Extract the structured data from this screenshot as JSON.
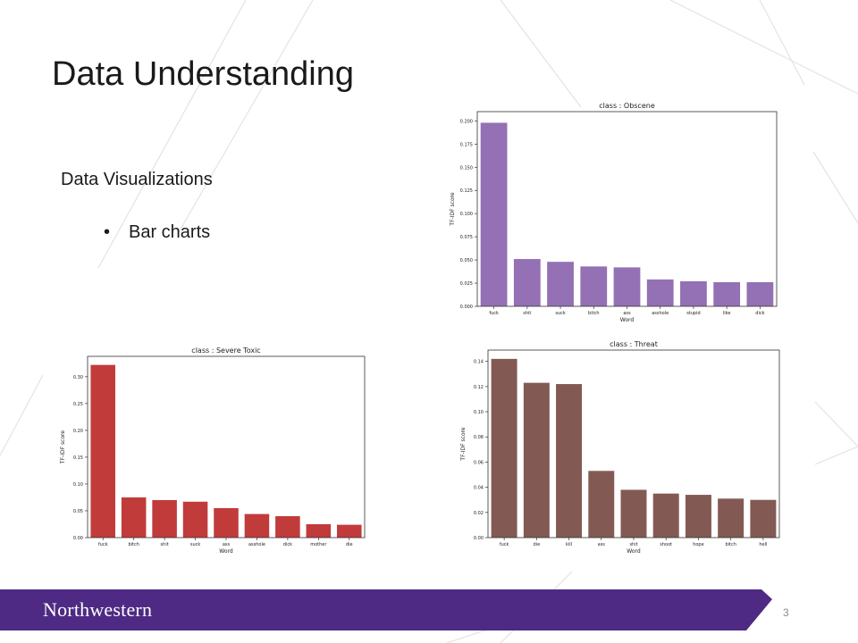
{
  "slide": {
    "title": "Data Understanding",
    "subheading": "Data Visualizations",
    "bullet": "Bar charts",
    "bullet_symbol": "•",
    "brand": "Northwestern",
    "page_number": "3",
    "brand_color": "#4e2a84"
  },
  "chart_data": [
    {
      "type": "bar",
      "title": "class : Obscene",
      "xlabel": "Word",
      "ylabel": "TF-IDF score",
      "color": "#9470b4",
      "categories": [
        "fuck",
        "shit",
        "suck",
        "bitch",
        "ass",
        "asshole",
        "stupid",
        "like",
        "dick"
      ],
      "values": [
        0.198,
        0.051,
        0.048,
        0.043,
        0.042,
        0.029,
        0.027,
        0.026,
        0.026
      ],
      "ylim": [
        0,
        0.21
      ],
      "yticks": [
        "0.000",
        "0.025",
        "0.050",
        "0.075",
        "0.100",
        "0.125",
        "0.150",
        "0.175",
        "0.200"
      ],
      "grid": false
    },
    {
      "type": "bar",
      "title": "class : Severe Toxic",
      "xlabel": "Word",
      "ylabel": "TF-IDF score",
      "color": "#c23b3b",
      "categories": [
        "fuck",
        "bitch",
        "shit",
        "suck",
        "ass",
        "asshole",
        "dick",
        "mother",
        "die"
      ],
      "values": [
        0.322,
        0.075,
        0.07,
        0.067,
        0.055,
        0.044,
        0.04,
        0.025,
        0.024
      ],
      "ylim": [
        0,
        0.338
      ],
      "yticks": [
        "0.00",
        "0.05",
        "0.10",
        "0.15",
        "0.20",
        "0.25",
        "0.30"
      ],
      "grid": false
    },
    {
      "type": "bar",
      "title": "class : Threat",
      "xlabel": "Word",
      "ylabel": "TF-IDF score",
      "color": "#835a53",
      "categories": [
        "fuck",
        "die",
        "kill",
        "ass",
        "shit",
        "shoot",
        "hope",
        "bitch",
        "hell"
      ],
      "values": [
        0.142,
        0.123,
        0.122,
        0.053,
        0.038,
        0.035,
        0.034,
        0.031,
        0.03
      ],
      "ylim": [
        0,
        0.149
      ],
      "yticks": [
        "0.00",
        "0.02",
        "0.04",
        "0.06",
        "0.08",
        "0.10",
        "0.12",
        "0.14"
      ],
      "grid": false
    }
  ]
}
